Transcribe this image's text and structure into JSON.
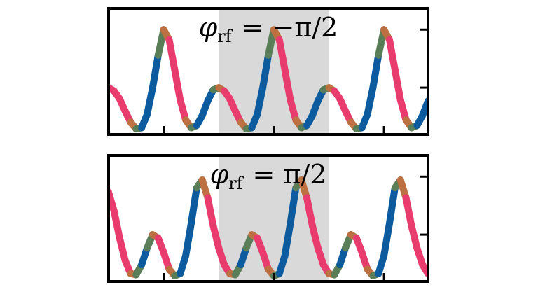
{
  "chart_data": [
    {
      "type": "line",
      "title_symbol": "φ",
      "title_subscript": "rf",
      "title_rhs": "= −π/2",
      "x": [
        0,
        0.05,
        0.1,
        0.15,
        0.2,
        0.25,
        0.3,
        0.35,
        0.4,
        0.45,
        0.5,
        0.55,
        0.6,
        0.65,
        0.7,
        0.75,
        0.8,
        0.85,
        0.9,
        0.95,
        1.0,
        1.05,
        1.1,
        1.15,
        1.2,
        1.25,
        1.3,
        1.35,
        1.4,
        1.45,
        1.5,
        1.55,
        1.6,
        1.65,
        1.7,
        1.75,
        1.8,
        1.85,
        1.9,
        1.95,
        2.0,
        2.05,
        2.1,
        2.15,
        2.2,
        2.25,
        2.3,
        2.35,
        2.4,
        2.45,
        2.5,
        2.55,
        2.6,
        2.65,
        2.7,
        2.75,
        2.8,
        2.85,
        2.9
      ],
      "y": [
        0.42,
        0.39,
        0.32,
        0.21,
        0.11,
        0.05,
        0.06,
        0.18,
        0.42,
        0.71,
        0.94,
        0.85,
        0.58,
        0.31,
        0.13,
        0.06,
        0.08,
        0.17,
        0.3,
        0.4,
        0.42,
        0.39,
        0.32,
        0.21,
        0.11,
        0.05,
        0.06,
        0.18,
        0.42,
        0.71,
        0.94,
        0.85,
        0.58,
        0.31,
        0.13,
        0.06,
        0.08,
        0.17,
        0.3,
        0.4,
        0.42,
        0.39,
        0.32,
        0.21,
        0.11,
        0.05,
        0.06,
        0.18,
        0.42,
        0.71,
        0.94,
        0.85,
        0.58,
        0.31,
        0.13,
        0.06,
        0.08,
        0.17,
        0.3
      ],
      "xlim": [
        0,
        2.9
      ],
      "ylim": [
        0,
        1.13
      ],
      "shaded_region": [
        1.0,
        2.0
      ],
      "x_ticks": [
        0.5,
        1.5,
        2.5
      ],
      "y_ticks": [
        0.42,
        0.94
      ],
      "colors": [
        "#0c5b9e",
        "#e83c6f",
        "#9a9a1e"
      ]
    },
    {
      "type": "line",
      "title_symbol": "φ",
      "title_subscript": "rf",
      "title_rhs": "= π/2",
      "x": [
        0,
        0.05,
        0.1,
        0.15,
        0.2,
        0.25,
        0.3,
        0.35,
        0.4,
        0.45,
        0.5,
        0.55,
        0.6,
        0.65,
        0.7,
        0.75,
        0.8,
        0.85,
        0.9,
        0.95,
        1.0,
        1.05,
        1.1,
        1.15,
        1.2,
        1.25,
        1.3,
        1.35,
        1.4,
        1.45,
        1.5,
        1.55,
        1.6,
        1.65,
        1.7,
        1.75,
        1.8,
        1.85,
        1.9,
        1.95,
        2.0,
        2.05,
        2.1,
        2.15,
        2.2,
        2.25,
        2.3,
        2.35,
        2.4,
        2.45,
        2.5,
        2.55,
        2.6,
        2.65,
        2.7,
        2.75,
        2.8,
        2.85,
        2.9
      ],
      "y": [
        0.8,
        0.63,
        0.39,
        0.19,
        0.07,
        0.06,
        0.15,
        0.3,
        0.42,
        0.39,
        0.26,
        0.11,
        0.05,
        0.07,
        0.23,
        0.52,
        0.84,
        0.91,
        0.75,
        0.5,
        0.3,
        0.15,
        0.07,
        0.06,
        0.15,
        0.3,
        0.42,
        0.39,
        0.26,
        0.11,
        0.05,
        0.07,
        0.23,
        0.52,
        0.84,
        0.91,
        0.75,
        0.5,
        0.3,
        0.15,
        0.07,
        0.06,
        0.15,
        0.3,
        0.42,
        0.39,
        0.26,
        0.11,
        0.05,
        0.07,
        0.23,
        0.52,
        0.84,
        0.91,
        0.75,
        0.5,
        0.3,
        0.15,
        0.07
      ],
      "xlim": [
        0,
        2.9
      ],
      "ylim": [
        0,
        1.13
      ],
      "shaded_region": [
        1.0,
        2.0
      ],
      "x_ticks": [
        0.5,
        1.5,
        2.5
      ],
      "y_ticks": [
        0.42,
        0.94
      ],
      "colors": [
        "#0c5b9e",
        "#e83c6f",
        "#9a9a1e"
      ]
    }
  ]
}
